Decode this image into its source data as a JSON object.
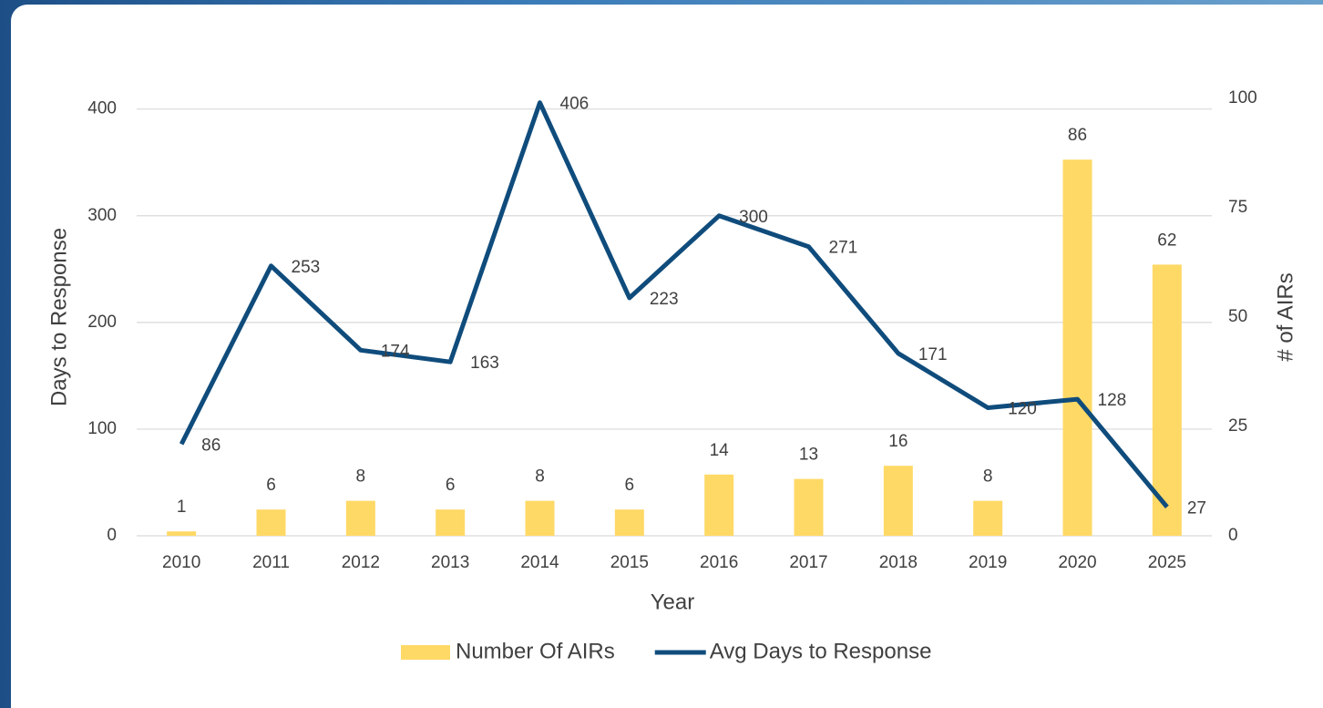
{
  "chart_data": {
    "type": "combo",
    "x_label": "Year",
    "y_label": "Days to Response",
    "y2_label": "# of AIRs",
    "categories": [
      "2010",
      "2011",
      "2012",
      "2013",
      "2014",
      "2015",
      "2016",
      "2017",
      "2018",
      "2019",
      "2020",
      "2025"
    ],
    "series": [
      {
        "name": "Number Of AIRs",
        "type": "bar",
        "axis": "y2",
        "color": "#FFD966",
        "values": [
          1,
          6,
          8,
          6,
          8,
          6,
          14,
          13,
          16,
          8,
          86,
          62
        ]
      },
      {
        "name": "Avg Days to Response",
        "type": "line",
        "color": "#0F4C7C",
        "values": [
          86,
          253,
          174,
          163,
          406,
          223,
          300,
          271,
          171,
          120,
          128,
          27
        ]
      }
    ],
    "ylim": [
      0,
      410
    ],
    "yticks": [
      0,
      100,
      200,
      300,
      400
    ],
    "y2lim": [
      0,
      100
    ],
    "y2ticks": [
      0,
      25,
      50,
      75,
      100
    ],
    "grid": true,
    "legend": "bottom"
  }
}
